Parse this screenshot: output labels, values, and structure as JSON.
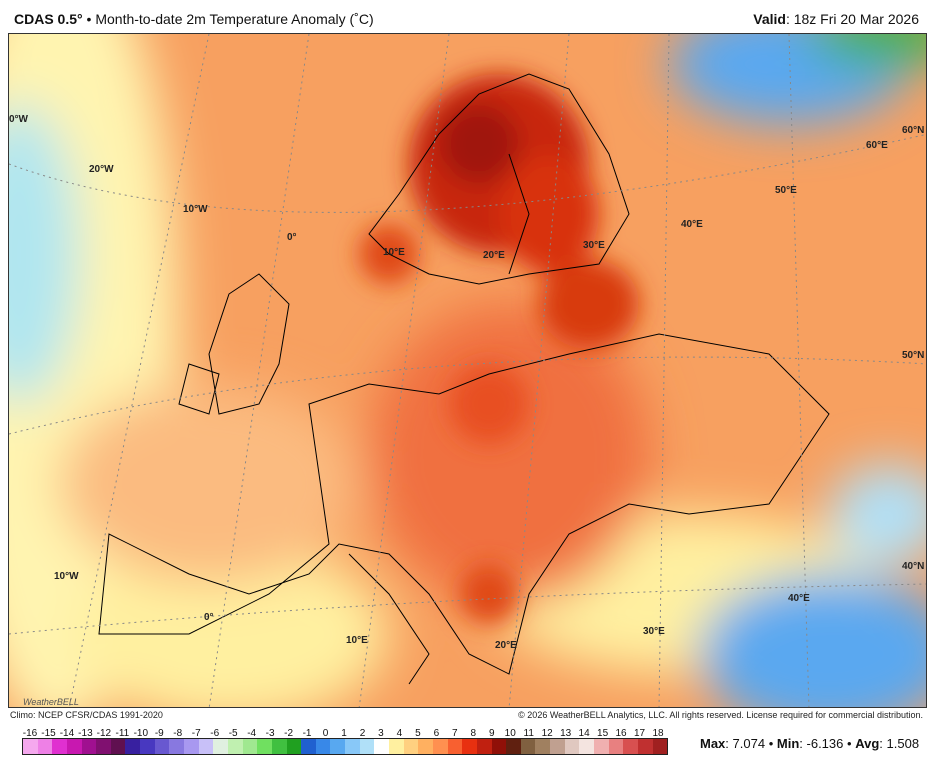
{
  "header": {
    "model": "CDAS 0.5",
    "degree": "°",
    "sep": "•",
    "title": "Month-to-date 2m Temperature Anomaly (˚C)",
    "valid_label": "Valid",
    "valid_value": ": 18z Fri 20 Mar 2026"
  },
  "footer": {
    "climo": "Climo: NCEP CFSR/CDAS 1991-2020",
    "copyright": "© 2026 WeatherBELL Analytics, LLC. All rights reserved. License required for commercial distribution.",
    "logo": "WeatherBELL"
  },
  "grid_labels": [
    "0°W",
    "20°W",
    "10°W",
    "0°",
    "10°E",
    "20°E",
    "30°E",
    "40°E",
    "50°E",
    "60°E",
    "60°N",
    "50°N",
    "40°N",
    "10°W",
    "0°",
    "10°E",
    "20°E",
    "30°E",
    "40°E",
    "60°N"
  ],
  "colorbar": {
    "ticks": [
      "-16",
      "-15",
      "-14",
      "-13",
      "-12",
      "-11",
      "-10",
      "-9",
      "-8",
      "-7",
      "-6",
      "-5",
      "-4",
      "-3",
      "-2",
      "-1",
      "0",
      "1",
      "2",
      "3",
      "4",
      "5",
      "6",
      "7",
      "8",
      "9",
      "10",
      "11",
      "12",
      "13",
      "14",
      "15",
      "16",
      "17",
      "18"
    ],
    "colors": [
      "#f5a8ee",
      "#ee80e6",
      "#e030d0",
      "#c818b0",
      "#a01090",
      "#801070",
      "#601050",
      "#3820a0",
      "#4838c0",
      "#6858d0",
      "#8878e0",
      "#a898f0",
      "#c8c0f8",
      "#e0f0e0",
      "#c0f0b0",
      "#a0e890",
      "#70e060",
      "#40c040",
      "#20a020",
      "#2060d0",
      "#3888e8",
      "#58a8f0",
      "#88c8f8",
      "#b0e0f8",
      "#ffffff",
      "#fff0a0",
      "#ffd080",
      "#ffb060",
      "#ff9050",
      "#f86030",
      "#e83010",
      "#c02010",
      "#901008",
      "#602010",
      "#806040",
      "#a08060",
      "#c0a090",
      "#e0c8c0",
      "#f4e4e0",
      "#f0b0b0",
      "#e88080",
      "#d85050",
      "#c03030",
      "#a02020"
    ]
  },
  "stats": {
    "max_label": "Max",
    "max": "7.074",
    "min_label": "Min",
    "min": "-6.136",
    "avg_label": "Avg",
    "avg": "1.508",
    "sep": "•"
  }
}
